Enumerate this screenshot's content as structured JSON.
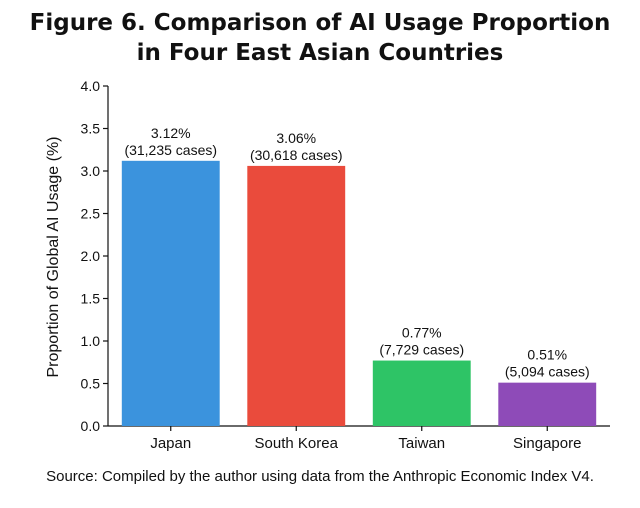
{
  "chart_data": {
    "type": "bar",
    "title_line1": "Figure 6. Comparison of AI Usage Proportion",
    "title_line2": "in Four East Asian Countries",
    "xlabel": "",
    "ylabel": "Proportion of Global AI Usage (%)",
    "ylim": [
      0,
      4.0
    ],
    "yticks": [
      "0.0",
      "0.5",
      "1.0",
      "1.5",
      "2.0",
      "2.5",
      "3.0",
      "3.5",
      "4.0"
    ],
    "grid": false,
    "categories": [
      "Japan",
      "South Korea",
      "Taiwan",
      "Singapore"
    ],
    "values": [
      3.12,
      3.06,
      0.77,
      0.51
    ],
    "value_labels": [
      "3.12%",
      "3.06%",
      "0.77%",
      "0.51%"
    ],
    "case_labels": [
      "(31,235 cases)",
      "(30,618 cases)",
      "(7,729 cases)",
      "(5,094 cases)"
    ],
    "colors": [
      "#3b93dd",
      "#ea4b3c",
      "#2ec466",
      "#8e4bb8"
    ]
  },
  "source": "Source: Compiled by the author using data from the Anthropic Economic Index V4."
}
